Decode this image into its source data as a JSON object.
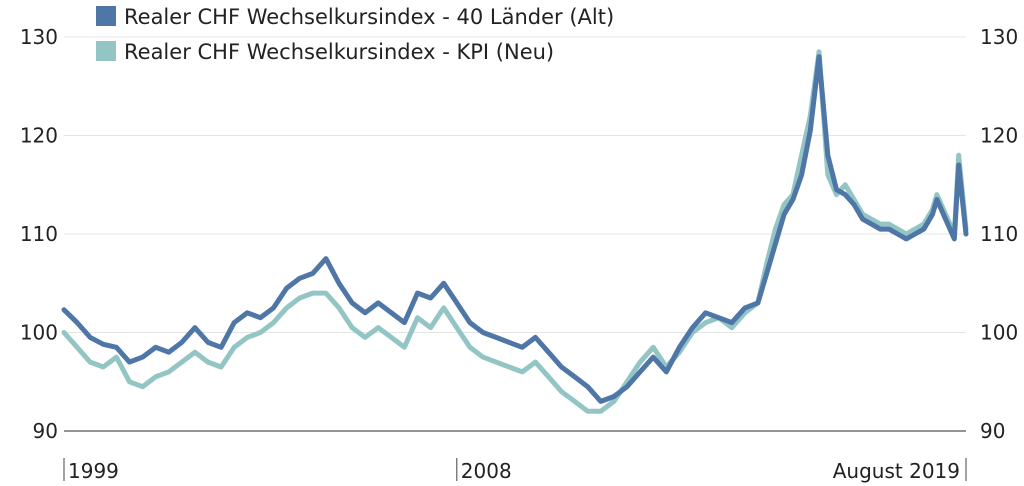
{
  "chart_data": {
    "type": "line",
    "ylim": [
      90,
      130
    ],
    "yticks": [
      90,
      100,
      110,
      120,
      130
    ],
    "xlim": [
      1999.0,
      2019.667
    ],
    "x_tick_labels": [
      {
        "x": 1999.0,
        "label": "1999",
        "anchor": "start"
      },
      {
        "x": 2008.0,
        "label": "2008",
        "anchor": "start"
      },
      {
        "x": 2019.667,
        "label": "August 2019",
        "anchor": "end"
      }
    ],
    "grid": true,
    "legend_position": "top-left",
    "series": [
      {
        "name": "Realer CHF Wechselkursindex - 40 Länder (Alt)",
        "color": "#4e76a6",
        "points": [
          [
            1999.0,
            102.3
          ],
          [
            1999.3,
            101.0
          ],
          [
            1999.6,
            99.5
          ],
          [
            1999.9,
            98.8
          ],
          [
            2000.2,
            98.5
          ],
          [
            2000.5,
            97.0
          ],
          [
            2000.8,
            97.5
          ],
          [
            2001.1,
            98.5
          ],
          [
            2001.4,
            98.0
          ],
          [
            2001.7,
            99.0
          ],
          [
            2002.0,
            100.5
          ],
          [
            2002.3,
            99.0
          ],
          [
            2002.6,
            98.5
          ],
          [
            2002.9,
            101.0
          ],
          [
            2003.2,
            102.0
          ],
          [
            2003.5,
            101.5
          ],
          [
            2003.8,
            102.5
          ],
          [
            2004.1,
            104.5
          ],
          [
            2004.4,
            105.5
          ],
          [
            2004.7,
            106.0
          ],
          [
            2005.0,
            107.5
          ],
          [
            2005.3,
            105.0
          ],
          [
            2005.6,
            103.0
          ],
          [
            2005.9,
            102.0
          ],
          [
            2006.2,
            103.0
          ],
          [
            2006.5,
            102.0
          ],
          [
            2006.8,
            101.0
          ],
          [
            2007.1,
            104.0
          ],
          [
            2007.4,
            103.5
          ],
          [
            2007.7,
            105.0
          ],
          [
            2008.0,
            103.0
          ],
          [
            2008.3,
            101.0
          ],
          [
            2008.6,
            100.0
          ],
          [
            2008.9,
            99.5
          ],
          [
            2009.2,
            99.0
          ],
          [
            2009.5,
            98.5
          ],
          [
            2009.8,
            99.5
          ],
          [
            2010.1,
            98.0
          ],
          [
            2010.4,
            96.5
          ],
          [
            2010.7,
            95.5
          ],
          [
            2011.0,
            94.5
          ],
          [
            2011.3,
            93.0
          ],
          [
            2011.6,
            93.5
          ],
          [
            2011.9,
            94.5
          ],
          [
            2012.2,
            96.0
          ],
          [
            2012.5,
            97.5
          ],
          [
            2012.8,
            96.0
          ],
          [
            2013.1,
            98.5
          ],
          [
            2013.4,
            100.5
          ],
          [
            2013.7,
            102.0
          ],
          [
            2014.0,
            101.5
          ],
          [
            2014.3,
            101.0
          ],
          [
            2014.6,
            102.5
          ],
          [
            2014.9,
            103.0
          ],
          [
            2015.1,
            106.0
          ],
          [
            2015.3,
            109.0
          ],
          [
            2015.5,
            112.0
          ],
          [
            2015.7,
            113.5
          ],
          [
            2015.9,
            116.0
          ],
          [
            2016.1,
            120.5
          ],
          [
            2016.3,
            128.0
          ],
          [
            2016.5,
            118.0
          ],
          [
            2016.7,
            114.5
          ],
          [
            2016.9,
            114.0
          ],
          [
            2017.1,
            113.0
          ],
          [
            2017.3,
            111.5
          ],
          [
            2017.5,
            111.0
          ],
          [
            2017.7,
            110.5
          ],
          [
            2017.9,
            110.5
          ],
          [
            2018.1,
            110.0
          ],
          [
            2018.3,
            109.5
          ],
          [
            2018.5,
            110.0
          ],
          [
            2018.7,
            110.5
          ],
          [
            2018.9,
            112.0
          ],
          [
            2019.0,
            113.5
          ],
          [
            2019.2,
            111.5
          ],
          [
            2019.3,
            110.5
          ],
          [
            2019.4,
            109.5
          ],
          [
            2019.5,
            117.0
          ],
          [
            2019.667,
            110.0
          ]
        ]
      },
      {
        "name": "Realer CHF Wechselkursindex - KPI (Neu)",
        "color": "#93c5c5",
        "points": [
          [
            1999.0,
            100.0
          ],
          [
            1999.3,
            98.5
          ],
          [
            1999.6,
            97.0
          ],
          [
            1999.9,
            96.5
          ],
          [
            2000.2,
            97.5
          ],
          [
            2000.5,
            95.0
          ],
          [
            2000.8,
            94.5
          ],
          [
            2001.1,
            95.5
          ],
          [
            2001.4,
            96.0
          ],
          [
            2001.7,
            97.0
          ],
          [
            2002.0,
            98.0
          ],
          [
            2002.3,
            97.0
          ],
          [
            2002.6,
            96.5
          ],
          [
            2002.9,
            98.5
          ],
          [
            2003.2,
            99.5
          ],
          [
            2003.5,
            100.0
          ],
          [
            2003.8,
            101.0
          ],
          [
            2004.1,
            102.5
          ],
          [
            2004.4,
            103.5
          ],
          [
            2004.7,
            104.0
          ],
          [
            2005.0,
            104.0
          ],
          [
            2005.3,
            102.5
          ],
          [
            2005.6,
            100.5
          ],
          [
            2005.9,
            99.5
          ],
          [
            2006.2,
            100.5
          ],
          [
            2006.5,
            99.5
          ],
          [
            2006.8,
            98.5
          ],
          [
            2007.1,
            101.5
          ],
          [
            2007.4,
            100.5
          ],
          [
            2007.7,
            102.5
          ],
          [
            2008.0,
            100.5
          ],
          [
            2008.3,
            98.5
          ],
          [
            2008.6,
            97.5
          ],
          [
            2008.9,
            97.0
          ],
          [
            2009.2,
            96.5
          ],
          [
            2009.5,
            96.0
          ],
          [
            2009.8,
            97.0
          ],
          [
            2010.1,
            95.5
          ],
          [
            2010.4,
            94.0
          ],
          [
            2010.7,
            93.0
          ],
          [
            2011.0,
            92.0
          ],
          [
            2011.3,
            92.0
          ],
          [
            2011.6,
            93.0
          ],
          [
            2011.9,
            95.0
          ],
          [
            2012.2,
            97.0
          ],
          [
            2012.5,
            98.5
          ],
          [
            2012.8,
            96.5
          ],
          [
            2013.1,
            98.0
          ],
          [
            2013.4,
            100.0
          ],
          [
            2013.7,
            101.0
          ],
          [
            2014.0,
            101.5
          ],
          [
            2014.3,
            100.5
          ],
          [
            2014.6,
            102.0
          ],
          [
            2014.9,
            103.0
          ],
          [
            2015.1,
            107.0
          ],
          [
            2015.3,
            110.5
          ],
          [
            2015.5,
            113.0
          ],
          [
            2015.7,
            114.0
          ],
          [
            2015.9,
            118.0
          ],
          [
            2016.1,
            122.0
          ],
          [
            2016.3,
            128.5
          ],
          [
            2016.5,
            116.0
          ],
          [
            2016.7,
            114.0
          ],
          [
            2016.9,
            115.0
          ],
          [
            2017.1,
            113.5
          ],
          [
            2017.3,
            112.0
          ],
          [
            2017.5,
            111.5
          ],
          [
            2017.7,
            111.0
          ],
          [
            2017.9,
            111.0
          ],
          [
            2018.1,
            110.5
          ],
          [
            2018.3,
            110.0
          ],
          [
            2018.5,
            110.5
          ],
          [
            2018.7,
            111.0
          ],
          [
            2018.9,
            112.5
          ],
          [
            2019.0,
            114.0
          ],
          [
            2019.2,
            112.0
          ],
          [
            2019.3,
            111.0
          ],
          [
            2019.4,
            110.0
          ],
          [
            2019.5,
            118.0
          ],
          [
            2019.667,
            110.5
          ]
        ]
      }
    ]
  }
}
